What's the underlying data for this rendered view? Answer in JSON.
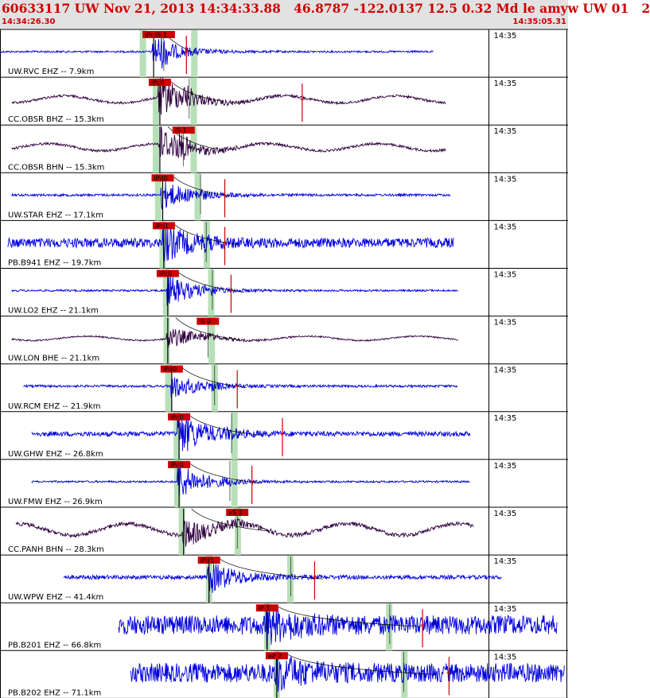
{
  "header": {
    "title": "60633117 UW Nov 21, 2013 14:34:33.88   46.8787 -122.0137 12.5 0.32 Md le amyw UW 01   2",
    "start_time": "14:34:26.30",
    "end_time": "14:35:05.31"
  },
  "colors": {
    "header_bg": "#e2e2e2",
    "header_text": "#cc0000",
    "trace_ehz": "#0000dd",
    "trace_other": "#300040",
    "pick_marker": "#cc0000",
    "window_band": "#b8e0b8",
    "grid": "#000000"
  },
  "chart_data": {
    "type": "line",
    "x_unit": "time",
    "time_window": [
      "14:34:26.30",
      "14:35:05.31"
    ],
    "minute_tick_label": "14:35",
    "traces": [
      {
        "label": "UW.RVC EHZ -- 7.9km",
        "color": "blue",
        "start": 0.0,
        "end": 0.768,
        "amp": 1.2,
        "burst_amp": 18,
        "p_time": 0.272,
        "p_label": "iPc0",
        "s_time": 0.29,
        "s_label": "iS 1",
        "bands": [
          0.253,
          0.344
        ],
        "end_marks": [
          0.33
        ]
      },
      {
        "label": "CC.OBSR BHZ -- 15.3km",
        "color": "purple",
        "start": 0.021,
        "end": 0.79,
        "amp": 5,
        "burst_amp": 26,
        "p_time": 0.283,
        "p_label": "iPc0",
        "s_time": 0.335,
        "s_label": "",
        "bands": [
          0.276,
          0.343
        ],
        "end_marks": [
          0.535
        ]
      },
      {
        "label": "CC.OBSR BHN -- 15.3km",
        "color": "purple",
        "start": 0.021,
        "end": 0.79,
        "amp": 5,
        "burst_amp": 24,
        "p_time": 0.283,
        "p_label": "",
        "s_time": 0.325,
        "s_label": "iS 1",
        "bands": [
          0.276,
          0.343
        ],
        "end_marks": []
      },
      {
        "label": "UW.STAR EHZ -- 17.1km",
        "color": "blue",
        "start": 0.021,
        "end": 0.797,
        "amp": 1.5,
        "burst_amp": 18,
        "p_time": 0.288,
        "p_label": "iPd0",
        "s_time": 0.355,
        "s_label": "",
        "bands": [
          0.28,
          0.35
        ],
        "end_marks": [
          0.398
        ]
      },
      {
        "label": "PB.B941 EHZ -- 19.7km",
        "color": "blue",
        "start": 0.014,
        "end": 0.804,
        "amp": 6,
        "burst_amp": 20,
        "p_time": 0.29,
        "p_label": "iPd1",
        "s_time": 0.365,
        "s_label": "",
        "bands": [
          0.288,
          0.366
        ],
        "end_marks": [
          0.398
        ]
      },
      {
        "label": "UW.LO2 EHZ -- 21.1km",
        "color": "blue",
        "start": 0.021,
        "end": 0.811,
        "amp": 1.2,
        "burst_amp": 20,
        "p_time": 0.297,
        "p_label": "iPc0",
        "s_time": 0.376,
        "s_label": "",
        "bands": [
          0.294,
          0.374
        ],
        "end_marks": [
          0.409
        ]
      },
      {
        "label": "UW.LON BHE -- 21.1km",
        "color": "purple",
        "start": 0.021,
        "end": 0.811,
        "amp": 3,
        "burst_amp": 14,
        "p_time": 0.297,
        "p_label": "",
        "s_time": 0.368,
        "s_label": "iS 0",
        "bands": [
          0.295,
          0.375
        ],
        "end_marks": []
      },
      {
        "label": "UW.RCM EHZ -- 21.9km",
        "color": "blue",
        "start": 0.042,
        "end": 0.811,
        "amp": 1.5,
        "burst_amp": 16,
        "p_time": 0.304,
        "p_label": "iPd0",
        "s_time": 0.38,
        "s_label": "",
        "bands": [
          0.298,
          0.38
        ],
        "end_marks": [
          0.42
        ]
      },
      {
        "label": "UW.GHW EHZ -- 26.8km",
        "color": "blue",
        "start": 0.056,
        "end": 0.832,
        "amp": 3,
        "burst_amp": 26,
        "p_time": 0.317,
        "p_label": "iPc0",
        "s_time": 0.41,
        "s_label": "",
        "bands": [
          0.313,
          0.415
        ],
        "end_marks": [
          0.5
        ]
      },
      {
        "label": "UW.FMW EHZ -- 26.9km",
        "color": "blue",
        "start": 0.056,
        "end": 0.832,
        "amp": 1.2,
        "burst_amp": 22,
        "p_time": 0.317,
        "p_label": "iPc0",
        "s_time": 0.407,
        "s_label": "",
        "bands": [
          0.314,
          0.415
        ],
        "end_marks": [
          0.446
        ]
      },
      {
        "label": "CC.PANH BHN -- 28.3km",
        "color": "purple",
        "start": 0.028,
        "end": 0.839,
        "amp": 8,
        "burst_amp": 18,
        "p_time": 0.325,
        "p_label": "",
        "s_time": 0.42,
        "s_label": "eS 2",
        "bands": [
          0.322,
          0.421
        ],
        "end_marks": []
      },
      {
        "label": "UW.WPW EHZ -- 41.4km",
        "color": "blue",
        "start": 0.112,
        "end": 0.888,
        "amp": 2.5,
        "burst_amp": 20,
        "p_time": 0.37,
        "p_label": "iPd1",
        "s_time": 0.515,
        "s_label": "",
        "bands": [
          0.37,
          0.514
        ],
        "end_marks": [
          0.557
        ]
      },
      {
        "label": "PB.B201 EHZ -- 66.8km",
        "color": "blue",
        "start": 0.21,
        "end": 0.986,
        "amp": 12,
        "burst_amp": 18,
        "p_time": 0.473,
        "p_label": "iP 1",
        "s_time": 0.69,
        "s_label": "",
        "bands": [
          0.473,
          0.689
        ],
        "end_marks": [
          0.748
        ]
      },
      {
        "label": "PB.B202 EHZ -- 71.1km",
        "color": "blue",
        "start": 0.231,
        "end": 1.0,
        "amp": 12,
        "burst_amp": 16,
        "p_time": 0.49,
        "p_label": "eP 2",
        "s_time": 0.715,
        "s_label": "",
        "bands": [
          0.49,
          0.716
        ],
        "end_marks": [
          0.795
        ]
      }
    ]
  }
}
